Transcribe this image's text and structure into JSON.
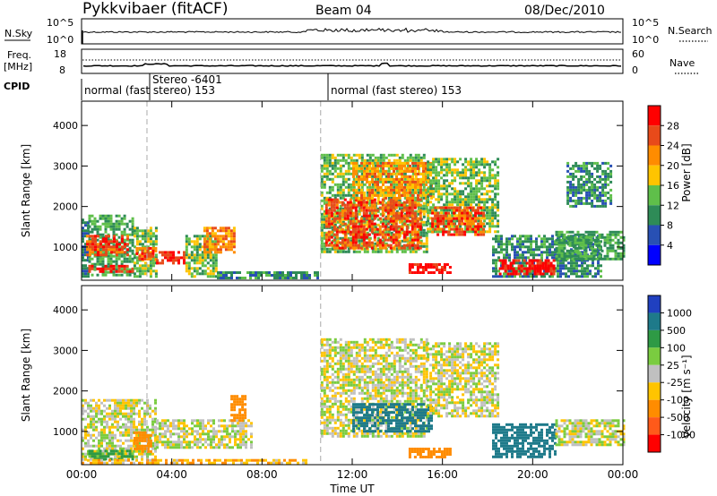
{
  "header": {
    "station": "Pykkvibaer (fitACF)",
    "beam": "Beam 04",
    "date": "08/Dec/2010"
  },
  "panels": {
    "nsky": {
      "left_label": "N.Sky",
      "right_label": "N.Search",
      "tick_hi": "10^5",
      "tick_lo": "10^0"
    },
    "freq": {
      "left_label_1": "Freq.",
      "left_label_2": "[MHz]",
      "right_label": "Nave",
      "left_ticks": [
        "18",
        "8"
      ],
      "right_ticks": [
        "60",
        "0"
      ]
    },
    "cpid": {
      "label": "CPID",
      "segments": [
        "normal (fast stereo) 153",
        "Stereo -6401",
        "normal (fast stereo) 153"
      ]
    }
  },
  "colorbars": {
    "power": {
      "label": "Power [dB]",
      "ticks": [
        "28",
        "24",
        "20",
        "16",
        "12",
        "8",
        "4"
      ],
      "colors": [
        "#ff0000",
        "#e84a1a",
        "#ff8c00",
        "#ffc400",
        "#5fbf4a",
        "#2e8b57",
        "#2850b4",
        "#0000ff"
      ]
    },
    "velocity": {
      "label": "Velocity [m s⁻¹]",
      "ticks": [
        "1000",
        "500",
        "100",
        "25",
        "-25",
        "-100",
        "-500",
        "-1000"
      ],
      "colors": [
        "#2040c0",
        "#1e7a8a",
        "#2e9a45",
        "#7acc40",
        "#c0c0c0",
        "#ffc400",
        "#ff8c00",
        "#ff5a1a",
        "#ff0000"
      ]
    }
  },
  "chart_data": [
    {
      "type": "heatmap",
      "title": "Power",
      "ylabel": "Slant Range [km]",
      "xlabel": "",
      "xlim_hours": [
        0,
        24
      ],
      "ylim_km": [
        180,
        4600
      ],
      "y_ticks": [
        "1000",
        "2000",
        "3000",
        "4000"
      ],
      "x_ticks": [
        "00:00",
        "04:00",
        "08:00",
        "12:00",
        "16:00",
        "20:00",
        "00:00"
      ],
      "vlines_hours": [
        2.9,
        10.6
      ],
      "regions": [
        {
          "t0": 0.0,
          "t1": 0.3,
          "r0": 300,
          "r1": 1700,
          "v": 6
        },
        {
          "t0": 0.3,
          "t1": 2.3,
          "r0": 300,
          "r1": 1800,
          "v": 10
        },
        {
          "t0": 0.2,
          "t1": 2.0,
          "r0": 800,
          "r1": 1300,
          "v": 24
        },
        {
          "t0": 0.3,
          "t1": 2.3,
          "r0": 380,
          "r1": 560,
          "v": 26
        },
        {
          "t0": 2.3,
          "t1": 3.3,
          "r0": 300,
          "r1": 1500,
          "v": 12
        },
        {
          "t0": 2.4,
          "t1": 3.3,
          "r0": 700,
          "r1": 1000,
          "v": 24
        },
        {
          "t0": 3.3,
          "t1": 4.6,
          "r0": 600,
          "r1": 900,
          "v": 26
        },
        {
          "t0": 4.6,
          "t1": 6.0,
          "r0": 300,
          "r1": 1300,
          "v": 12
        },
        {
          "t0": 5.4,
          "t1": 6.8,
          "r0": 900,
          "r1": 1500,
          "v": 20
        },
        {
          "t0": 6.0,
          "t1": 10.5,
          "r0": 250,
          "r1": 400,
          "v": 8
        },
        {
          "t0": 10.6,
          "t1": 15.3,
          "r0": 900,
          "r1": 3300,
          "v": 12
        },
        {
          "t0": 10.8,
          "t1": 15.0,
          "r0": 1000,
          "r1": 2200,
          "v": 24
        },
        {
          "t0": 12.0,
          "t1": 15.5,
          "r0": 2200,
          "r1": 3100,
          "v": 20
        },
        {
          "t0": 15.3,
          "t1": 18.5,
          "r0": 1400,
          "r1": 3200,
          "v": 12
        },
        {
          "t0": 15.5,
          "t1": 17.8,
          "r0": 1300,
          "r1": 2000,
          "v": 24
        },
        {
          "t0": 14.5,
          "t1": 16.3,
          "r0": 350,
          "r1": 600,
          "v": 28
        },
        {
          "t0": 18.2,
          "t1": 23.0,
          "r0": 300,
          "r1": 1300,
          "v": 8
        },
        {
          "t0": 18.5,
          "t1": 21.0,
          "r0": 350,
          "r1": 700,
          "v": 28
        },
        {
          "t0": 21.0,
          "t1": 24.0,
          "r0": 700,
          "r1": 1400,
          "v": 10
        },
        {
          "t0": 21.5,
          "t1": 23.5,
          "r0": 2000,
          "r1": 3100,
          "v": 8
        }
      ]
    },
    {
      "type": "heatmap",
      "title": "Velocity",
      "ylabel": "Slant Range [km]",
      "xlabel": "Time UT",
      "xlim_hours": [
        0,
        24
      ],
      "ylim_km": [
        180,
        4600
      ],
      "y_ticks": [
        "1000",
        "2000",
        "3000",
        "4000"
      ],
      "x_ticks": [
        "00:00",
        "04:00",
        "08:00",
        "12:00",
        "16:00",
        "20:00",
        "00:00"
      ],
      "vlines_hours": [
        2.9,
        10.6
      ],
      "regions": [
        {
          "t0": 0.0,
          "t1": 3.3,
          "r0": 300,
          "r1": 1800,
          "v": 0
        },
        {
          "t0": 0.3,
          "t1": 2.3,
          "r0": 350,
          "r1": 550,
          "v": 150
        },
        {
          "t0": 2.3,
          "t1": 3.1,
          "r0": 500,
          "r1": 1000,
          "v": -300
        },
        {
          "t0": 3.3,
          "t1": 7.5,
          "r0": 600,
          "r1": 1300,
          "v": 0
        },
        {
          "t0": 6.6,
          "t1": 7.3,
          "r0": 1300,
          "r1": 1900,
          "v": -300
        },
        {
          "t0": 10.6,
          "t1": 15.3,
          "r0": 900,
          "r1": 3300,
          "v": 0
        },
        {
          "t0": 12.0,
          "t1": 15.5,
          "r0": 1000,
          "r1": 1700,
          "v": 600
        },
        {
          "t0": 15.3,
          "t1": 18.5,
          "r0": 1400,
          "r1": 3200,
          "v": 0
        },
        {
          "t0": 14.5,
          "t1": 16.3,
          "r0": 350,
          "r1": 600,
          "v": -300
        },
        {
          "t0": 18.2,
          "t1": 21.0,
          "r0": 350,
          "r1": 1200,
          "v": 600
        },
        {
          "t0": 21.0,
          "t1": 24.0,
          "r0": 700,
          "r1": 1300,
          "v": 0
        },
        {
          "t0": 0.0,
          "t1": 10.0,
          "r0": 220,
          "r1": 320,
          "v": -80
        }
      ]
    }
  ]
}
